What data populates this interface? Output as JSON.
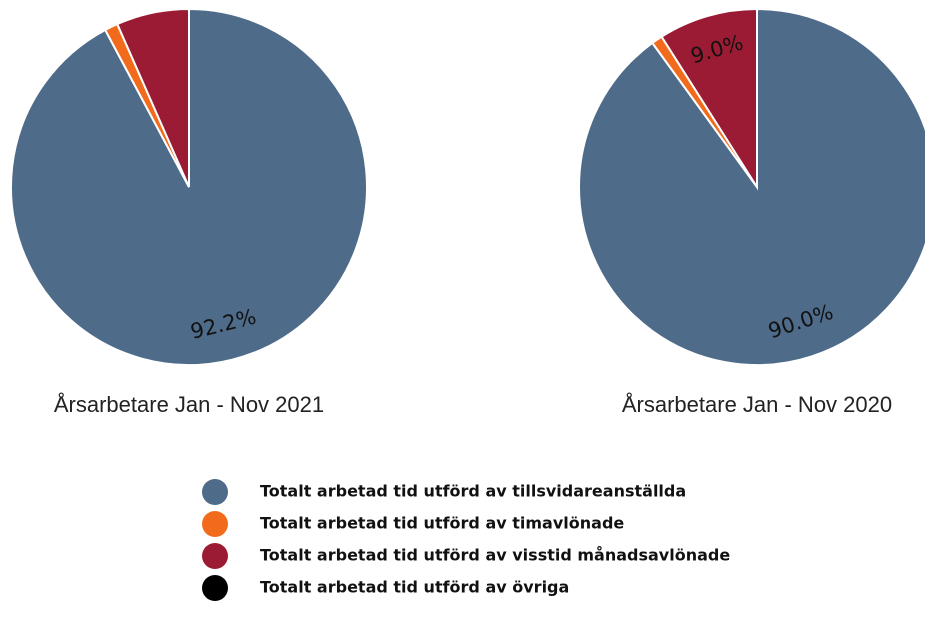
{
  "chart_data": [
    {
      "type": "pie",
      "title": "Årsarbetare Jan - Nov 2021",
      "categories": [
        "Totalt arbetad tid utförd av tillsvidareanställda",
        "Totalt arbetad tid utförd av timavlönade",
        "Totalt arbetad tid utförd av visstid månadsavlönade",
        "Totalt arbetad tid utförd av övriga"
      ],
      "values": [
        92.2,
        1.2,
        6.6,
        0
      ],
      "value_labels": [
        "92.2%",
        null,
        null,
        null
      ],
      "colors": [
        "#4f6b8a",
        "#f26b1d",
        "#9b1b34",
        "#000000"
      ]
    },
    {
      "type": "pie",
      "title": "Årsarbetare Jan - Nov 2020",
      "categories": [
        "Totalt arbetad tid utförd av tillsvidareanställda",
        "Totalt arbetad tid utförd av timavlönade",
        "Totalt arbetad tid utförd av visstid månadsavlönade",
        "Totalt arbetad tid utförd av övriga"
      ],
      "values": [
        90.0,
        1.0,
        9.0,
        0
      ],
      "value_labels": [
        "90.0%",
        null,
        "9.0%",
        null
      ],
      "colors": [
        "#4f6b8a",
        "#f26b1d",
        "#9b1b34",
        "#000000"
      ]
    }
  ]
}
